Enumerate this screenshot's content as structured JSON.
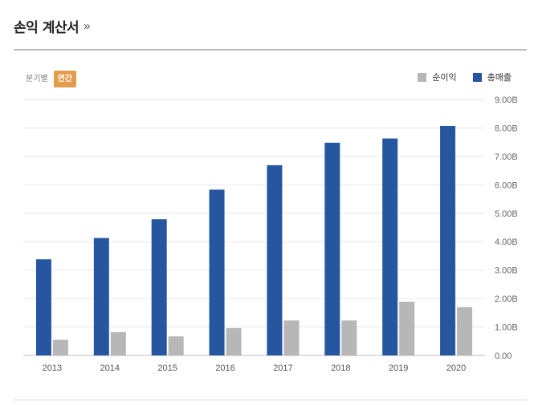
{
  "header": {
    "title": "손익 계산서",
    "more": "»"
  },
  "toggle": {
    "quarterly": "분기별",
    "annual": "연간"
  },
  "colors": {
    "net_income": "#b7b7b7",
    "revenue": "#2756a1",
    "accent": "#e39b4c"
  },
  "chart_data": {
    "type": "bar",
    "categories": [
      "2013",
      "2014",
      "2015",
      "2016",
      "2017",
      "2018",
      "2019",
      "2020"
    ],
    "series": [
      {
        "name": "순이익",
        "values": [
          0.55,
          0.82,
          0.67,
          0.96,
          1.23,
          1.23,
          1.89,
          1.7
        ]
      },
      {
        "name": "총매출",
        "values": [
          3.38,
          4.13,
          4.79,
          5.83,
          6.69,
          7.48,
          7.63,
          8.07
        ]
      }
    ],
    "yticks": [
      "0.00",
      "1.00B",
      "2.00B",
      "3.00B",
      "4.00B",
      "5.00B",
      "6.00B",
      "7.00B",
      "8.00B",
      "9.00B"
    ],
    "ylim": [
      0,
      9
    ],
    "grid": true,
    "legend": "top-right",
    "xlabel": "",
    "ylabel": ""
  }
}
